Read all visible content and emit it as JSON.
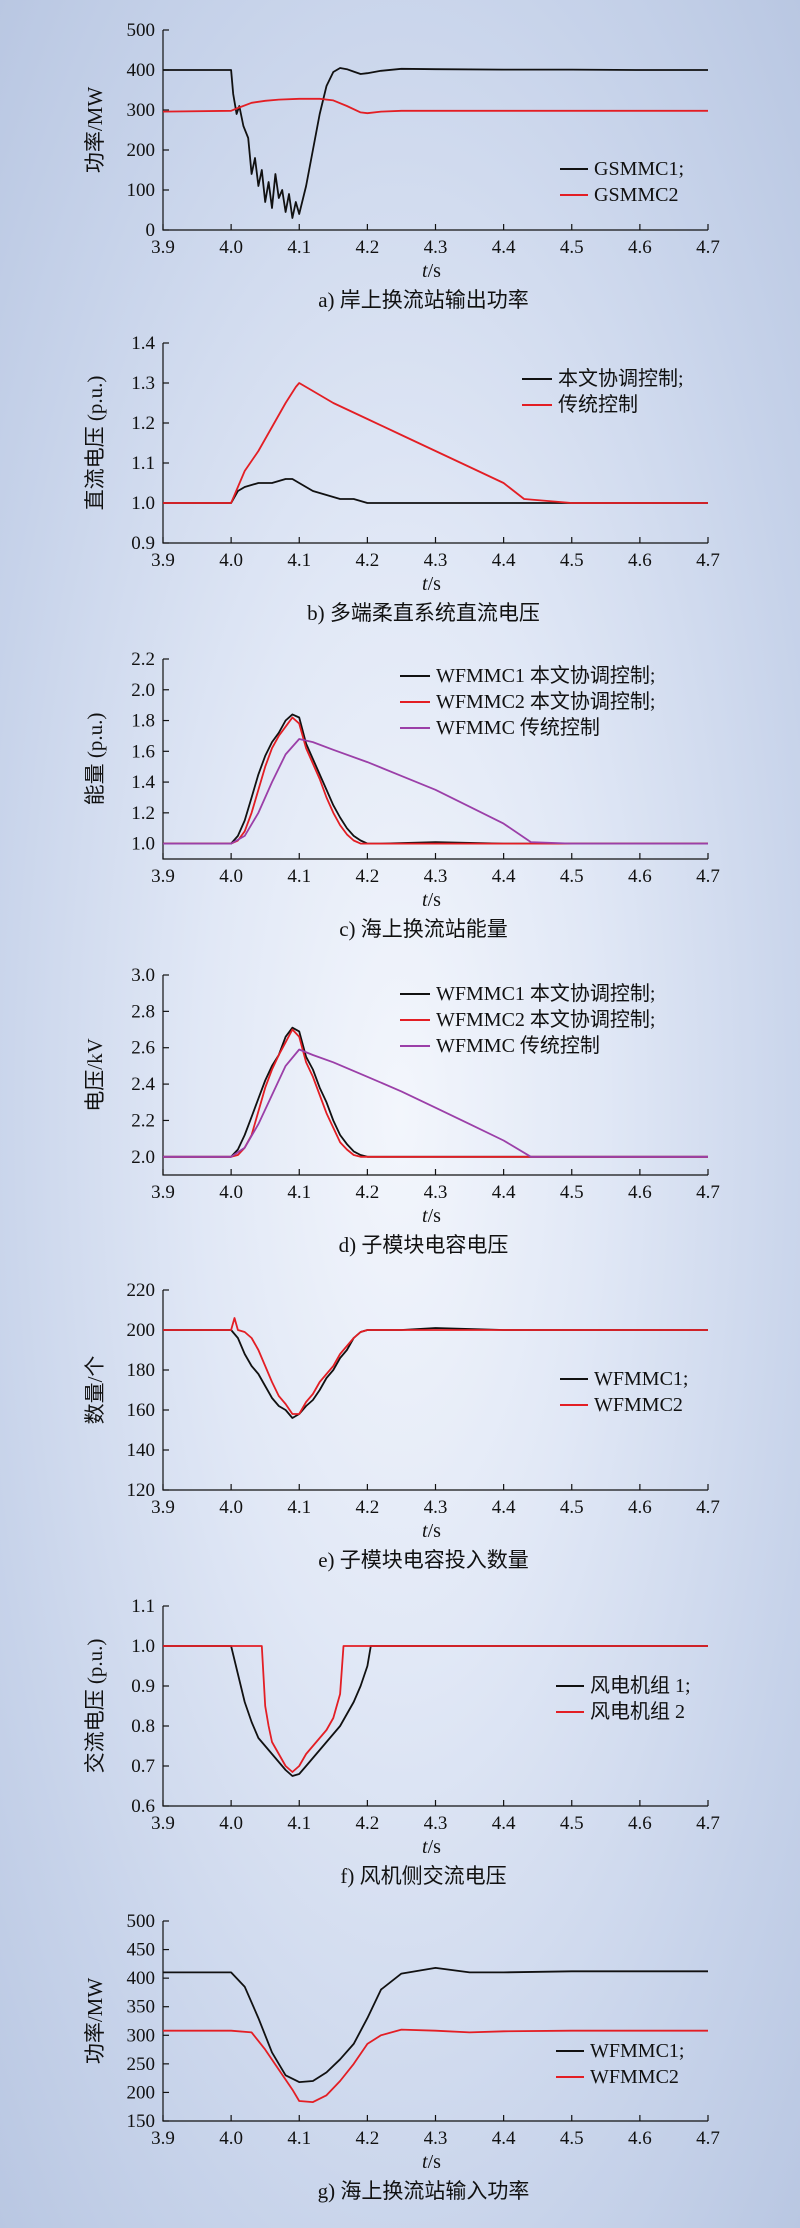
{
  "chart_data": [
    {
      "id": "a",
      "type": "line",
      "caption": "a) 岸上换流站输出功率",
      "ylabel": "功率/MW",
      "xlabel": "t/s",
      "ylim": [
        0,
        500
      ],
      "yticks": [
        0,
        100,
        200,
        300,
        400,
        500
      ],
      "xlim": [
        3.9,
        4.7
      ],
      "xticks": [
        3.9,
        4.0,
        4.1,
        4.2,
        4.3,
        4.4,
        4.5,
        4.6,
        4.7
      ],
      "legend": "right",
      "series": [
        {
          "name": "GSMMC1;",
          "color": "#111111",
          "x": [
            3.9,
            4.0,
            4.003,
            4.008,
            4.012,
            4.018,
            4.025,
            4.03,
            4.035,
            4.04,
            4.045,
            4.05,
            4.055,
            4.06,
            4.065,
            4.07,
            4.075,
            4.08,
            4.085,
            4.09,
            4.095,
            4.1,
            4.11,
            4.12,
            4.13,
            4.14,
            4.15,
            4.16,
            4.17,
            4.18,
            4.19,
            4.2,
            4.22,
            4.25,
            4.3,
            4.4,
            4.5,
            4.6,
            4.7
          ],
          "y": [
            400,
            400,
            340,
            290,
            310,
            260,
            230,
            140,
            180,
            110,
            150,
            70,
            120,
            55,
            140,
            80,
            100,
            45,
            90,
            30,
            70,
            40,
            110,
            200,
            290,
            360,
            395,
            405,
            402,
            396,
            390,
            392,
            398,
            403,
            402,
            401,
            401,
            400,
            400
          ]
        },
        {
          "name": "GSMMC2",
          "color": "#e31e24",
          "x": [
            3.9,
            4.0,
            4.01,
            4.03,
            4.05,
            4.07,
            4.1,
            4.13,
            4.15,
            4.17,
            4.19,
            4.2,
            4.22,
            4.25,
            4.3,
            4.4,
            4.5,
            4.6,
            4.7
          ],
          "y": [
            296,
            298,
            305,
            318,
            323,
            326,
            328,
            328,
            324,
            310,
            294,
            292,
            296,
            298,
            298,
            298,
            298,
            298,
            298
          ]
        }
      ]
    },
    {
      "id": "b",
      "type": "line",
      "caption": "b) 多端柔直系统直流电压",
      "ylabel": "直流电压 (p.u.)",
      "xlabel": "t/s",
      "ylim": [
        0.9,
        1.4
      ],
      "yticks": [
        0.9,
        1.0,
        1.1,
        1.2,
        1.3,
        1.4
      ],
      "xlim": [
        3.9,
        4.7
      ],
      "xticks": [
        3.9,
        4.0,
        4.1,
        4.2,
        4.3,
        4.4,
        4.5,
        4.6,
        4.7
      ],
      "legend": "top-right",
      "series": [
        {
          "name": "本文协调控制;",
          "color": "#111111",
          "x": [
            3.9,
            4.0,
            4.01,
            4.02,
            4.04,
            4.06,
            4.08,
            4.09,
            4.1,
            4.12,
            4.14,
            4.16,
            4.18,
            4.2,
            4.25,
            4.3,
            4.4,
            4.5,
            4.6,
            4.7
          ],
          "y": [
            1.0,
            1.0,
            1.03,
            1.04,
            1.05,
            1.05,
            1.06,
            1.06,
            1.05,
            1.03,
            1.02,
            1.01,
            1.01,
            1.0,
            1.0,
            1.0,
            1.0,
            1.0,
            1.0,
            1.0
          ]
        },
        {
          "name": "传统控制",
          "color": "#e31e24",
          "x": [
            3.9,
            4.0,
            4.01,
            4.02,
            4.04,
            4.06,
            4.08,
            4.095,
            4.1,
            4.12,
            4.15,
            4.2,
            4.25,
            4.3,
            4.35,
            4.4,
            4.43,
            4.5,
            4.6,
            4.7
          ],
          "y": [
            1.0,
            1.0,
            1.04,
            1.08,
            1.13,
            1.19,
            1.25,
            1.29,
            1.3,
            1.28,
            1.25,
            1.21,
            1.17,
            1.13,
            1.09,
            1.05,
            1.01,
            1.0,
            1.0,
            1.0
          ]
        }
      ]
    },
    {
      "id": "c",
      "type": "line",
      "caption": "c) 海上换流站能量",
      "ylabel": "能量 (p.u.)",
      "xlabel": "t/s",
      "ylim": [
        0.9,
        2.2
      ],
      "yticks": [
        1.0,
        1.2,
        1.4,
        1.6,
        1.8,
        2.0,
        2.2
      ],
      "xlim": [
        3.9,
        4.7
      ],
      "xticks": [
        3.9,
        4.0,
        4.1,
        4.2,
        4.3,
        4.4,
        4.5,
        4.6,
        4.7
      ],
      "legend": "top-right",
      "series": [
        {
          "name": "WFMMC1 本文协调控制;",
          "color": "#111111",
          "x": [
            3.9,
            4.0,
            4.01,
            4.02,
            4.03,
            4.04,
            4.05,
            4.06,
            4.07,
            4.08,
            4.09,
            4.1,
            4.11,
            4.12,
            4.13,
            4.14,
            4.15,
            4.16,
            4.17,
            4.18,
            4.19,
            4.2,
            4.22,
            4.3,
            4.4,
            4.5,
            4.6,
            4.7
          ],
          "y": [
            1.0,
            1.0,
            1.05,
            1.15,
            1.3,
            1.45,
            1.57,
            1.66,
            1.72,
            1.8,
            1.84,
            1.82,
            1.65,
            1.55,
            1.45,
            1.35,
            1.25,
            1.17,
            1.1,
            1.05,
            1.02,
            1.0,
            1.0,
            1.01,
            1.0,
            1.0,
            1.0,
            1.0
          ]
        },
        {
          "name": "WFMMC2 本文协调控制;",
          "color": "#e31e24",
          "x": [
            3.9,
            4.0,
            4.01,
            4.02,
            4.03,
            4.04,
            4.05,
            4.06,
            4.07,
            4.08,
            4.09,
            4.1,
            4.11,
            4.12,
            4.13,
            4.14,
            4.15,
            4.16,
            4.17,
            4.18,
            4.19,
            4.2,
            4.22,
            4.3,
            4.4,
            4.5,
            4.6,
            4.7
          ],
          "y": [
            1.0,
            1.0,
            1.02,
            1.08,
            1.2,
            1.35,
            1.5,
            1.62,
            1.7,
            1.76,
            1.82,
            1.78,
            1.62,
            1.52,
            1.42,
            1.3,
            1.2,
            1.12,
            1.06,
            1.02,
            1.0,
            1.0,
            1.0,
            1.0,
            1.0,
            1.0,
            1.0,
            1.0
          ]
        },
        {
          "name": "WFMMC 传统控制",
          "color": "#9b3fa8",
          "x": [
            3.9,
            4.0,
            4.02,
            4.04,
            4.06,
            4.08,
            4.1,
            4.12,
            4.15,
            4.2,
            4.25,
            4.3,
            4.35,
            4.4,
            4.44,
            4.5,
            4.6,
            4.7
          ],
          "y": [
            1.0,
            1.0,
            1.05,
            1.2,
            1.4,
            1.58,
            1.68,
            1.66,
            1.61,
            1.53,
            1.44,
            1.35,
            1.24,
            1.13,
            1.01,
            1.0,
            1.0,
            1.0
          ]
        }
      ]
    },
    {
      "id": "d",
      "type": "line",
      "caption": "d) 子模块电容电压",
      "ylabel": "电压/kV",
      "xlabel": "t/s",
      "ylim": [
        1.9,
        3.0
      ],
      "yticks": [
        2.0,
        2.2,
        2.4,
        2.6,
        2.8,
        3.0
      ],
      "xlim": [
        3.9,
        4.7
      ],
      "xticks": [
        3.9,
        4.0,
        4.1,
        4.2,
        4.3,
        4.4,
        4.5,
        4.6,
        4.7
      ],
      "legend": "top-right",
      "series": [
        {
          "name": "WFMMC1 本文协调控制;",
          "color": "#111111",
          "x": [
            3.9,
            4.0,
            4.01,
            4.02,
            4.03,
            4.04,
            4.05,
            4.06,
            4.07,
            4.08,
            4.09,
            4.1,
            4.11,
            4.12,
            4.13,
            4.14,
            4.15,
            4.16,
            4.17,
            4.18,
            4.19,
            4.2,
            4.22,
            4.3,
            4.4,
            4.5,
            4.6,
            4.7
          ],
          "y": [
            2.0,
            2.0,
            2.04,
            2.12,
            2.22,
            2.32,
            2.42,
            2.5,
            2.56,
            2.66,
            2.71,
            2.69,
            2.55,
            2.48,
            2.38,
            2.3,
            2.2,
            2.12,
            2.07,
            2.03,
            2.01,
            2.0,
            2.0,
            2.0,
            2.0,
            2.0,
            2.0,
            2.0
          ]
        },
        {
          "name": "WFMMC2 本文协调控制;",
          "color": "#e31e24",
          "x": [
            3.9,
            4.0,
            4.01,
            4.02,
            4.03,
            4.04,
            4.05,
            4.06,
            4.07,
            4.08,
            4.09,
            4.1,
            4.11,
            4.12,
            4.13,
            4.14,
            4.15,
            4.16,
            4.17,
            4.18,
            4.19,
            4.2,
            4.22,
            4.3,
            4.4,
            4.5,
            4.6,
            4.7
          ],
          "y": [
            2.0,
            2.0,
            2.01,
            2.05,
            2.12,
            2.25,
            2.38,
            2.48,
            2.56,
            2.63,
            2.7,
            2.66,
            2.52,
            2.44,
            2.34,
            2.24,
            2.16,
            2.08,
            2.04,
            2.01,
            2.0,
            2.0,
            2.0,
            2.0,
            2.0,
            2.0,
            2.0,
            2.0
          ]
        },
        {
          "name": "WFMMC 传统控制",
          "color": "#9b3fa8",
          "x": [
            3.9,
            4.0,
            4.02,
            4.04,
            4.06,
            4.08,
            4.1,
            4.12,
            4.15,
            4.2,
            4.25,
            4.3,
            4.35,
            4.4,
            4.44,
            4.5,
            4.6,
            4.7
          ],
          "y": [
            2.0,
            2.0,
            2.05,
            2.18,
            2.34,
            2.5,
            2.59,
            2.56,
            2.52,
            2.44,
            2.36,
            2.27,
            2.18,
            2.09,
            2.0,
            2.0,
            2.0,
            2.0
          ]
        }
      ]
    },
    {
      "id": "e",
      "type": "line",
      "caption": "e) 子模块电容投入数量",
      "ylabel": "数量/个",
      "xlabel": "t/s",
      "ylim": [
        120,
        220
      ],
      "yticks": [
        120,
        140,
        160,
        180,
        200,
        220
      ],
      "xlim": [
        3.9,
        4.7
      ],
      "xticks": [
        3.9,
        4.0,
        4.1,
        4.2,
        4.3,
        4.4,
        4.5,
        4.6,
        4.7
      ],
      "legend": "right",
      "series": [
        {
          "name": "WFMMC1;",
          "color": "#111111",
          "x": [
            3.9,
            4.0,
            4.01,
            4.02,
            4.03,
            4.04,
            4.05,
            4.06,
            4.07,
            4.08,
            4.09,
            4.1,
            4.11,
            4.12,
            4.13,
            4.14,
            4.15,
            4.16,
            4.17,
            4.18,
            4.19,
            4.2,
            4.25,
            4.3,
            4.4,
            4.5,
            4.6,
            4.7
          ],
          "y": [
            200,
            200,
            196,
            188,
            182,
            178,
            172,
            166,
            162,
            160,
            156,
            158,
            162,
            165,
            170,
            176,
            180,
            186,
            190,
            196,
            199,
            200,
            200,
            201,
            200,
            200,
            200,
            200
          ]
        },
        {
          "name": "WFMMC2",
          "color": "#e31e24",
          "x": [
            3.9,
            4.0,
            4.005,
            4.01,
            4.02,
            4.03,
            4.04,
            4.05,
            4.06,
            4.07,
            4.08,
            4.09,
            4.1,
            4.11,
            4.12,
            4.13,
            4.14,
            4.15,
            4.16,
            4.17,
            4.18,
            4.19,
            4.2,
            4.25,
            4.3,
            4.4,
            4.5,
            4.6,
            4.7
          ],
          "y": [
            200,
            200,
            206,
            200,
            199,
            196,
            190,
            182,
            174,
            167,
            163,
            158,
            158,
            164,
            168,
            174,
            178,
            182,
            188,
            192,
            196,
            199,
            200,
            200,
            200,
            200,
            200,
            200,
            200
          ]
        }
      ]
    },
    {
      "id": "f",
      "type": "line",
      "caption": "f) 风机侧交流电压",
      "ylabel": "交流电压 (p.u.)",
      "xlabel": "t/s",
      "ylim": [
        0.6,
        1.1
      ],
      "yticks": [
        0.6,
        0.7,
        0.8,
        0.9,
        1.0,
        1.1
      ],
      "xlim": [
        3.9,
        4.7
      ],
      "xticks": [
        3.9,
        4.0,
        4.1,
        4.2,
        4.3,
        4.4,
        4.5,
        4.6,
        4.7
      ],
      "legend": "right",
      "series": [
        {
          "name": "风电机组 1;",
          "color": "#111111",
          "x": [
            3.9,
            4.0,
            4.01,
            4.02,
            4.03,
            4.04,
            4.05,
            4.06,
            4.07,
            4.08,
            4.09,
            4.1,
            4.11,
            4.12,
            4.13,
            4.14,
            4.15,
            4.16,
            4.17,
            4.18,
            4.19,
            4.2,
            4.205,
            4.3,
            4.4,
            4.5,
            4.6,
            4.7
          ],
          "y": [
            1.0,
            1.0,
            0.93,
            0.86,
            0.81,
            0.77,
            0.75,
            0.73,
            0.71,
            0.69,
            0.675,
            0.68,
            0.7,
            0.72,
            0.74,
            0.76,
            0.78,
            0.8,
            0.83,
            0.86,
            0.9,
            0.95,
            1.0,
            1.0,
            1.0,
            1.0,
            1.0,
            1.0
          ]
        },
        {
          "name": "风电机组 2",
          "color": "#e31e24",
          "x": [
            3.9,
            4.045,
            4.05,
            4.055,
            4.06,
            4.07,
            4.08,
            4.09,
            4.1,
            4.11,
            4.12,
            4.13,
            4.14,
            4.15,
            4.16,
            4.165,
            4.2,
            4.3,
            4.4,
            4.5,
            4.6,
            4.7
          ],
          "y": [
            1.0,
            1.0,
            0.85,
            0.8,
            0.76,
            0.73,
            0.7,
            0.685,
            0.7,
            0.73,
            0.75,
            0.77,
            0.79,
            0.82,
            0.88,
            1.0,
            1.0,
            1.0,
            1.0,
            1.0,
            1.0,
            1.0
          ]
        }
      ]
    },
    {
      "id": "g",
      "type": "line",
      "caption": "g) 海上换流站输入功率",
      "ylabel": "功率/MW",
      "xlabel": "t/s",
      "ylim": [
        150,
        500
      ],
      "yticks": [
        150,
        200,
        250,
        300,
        350,
        400,
        450,
        500
      ],
      "xlim": [
        3.9,
        4.7
      ],
      "xticks": [
        3.9,
        4.0,
        4.1,
        4.2,
        4.3,
        4.4,
        4.5,
        4.6,
        4.7
      ],
      "legend": "right",
      "series": [
        {
          "name": "WFMMC1;",
          "color": "#111111",
          "x": [
            3.9,
            4.0,
            4.02,
            4.04,
            4.06,
            4.08,
            4.1,
            4.12,
            4.14,
            4.16,
            4.18,
            4.2,
            4.22,
            4.25,
            4.3,
            4.35,
            4.4,
            4.5,
            4.6,
            4.7
          ],
          "y": [
            410,
            410,
            385,
            330,
            270,
            230,
            218,
            220,
            235,
            258,
            285,
            330,
            380,
            408,
            418,
            410,
            410,
            412,
            412,
            412
          ]
        },
        {
          "name": "WFMMC2",
          "color": "#e31e24",
          "x": [
            3.9,
            4.0,
            4.03,
            4.05,
            4.07,
            4.09,
            4.1,
            4.12,
            4.14,
            4.16,
            4.18,
            4.2,
            4.22,
            4.25,
            4.3,
            4.35,
            4.4,
            4.5,
            4.6,
            4.7
          ],
          "y": [
            308,
            308,
            305,
            275,
            240,
            205,
            185,
            183,
            195,
            220,
            250,
            285,
            300,
            310,
            308,
            305,
            307,
            308,
            308,
            308
          ]
        }
      ]
    }
  ]
}
